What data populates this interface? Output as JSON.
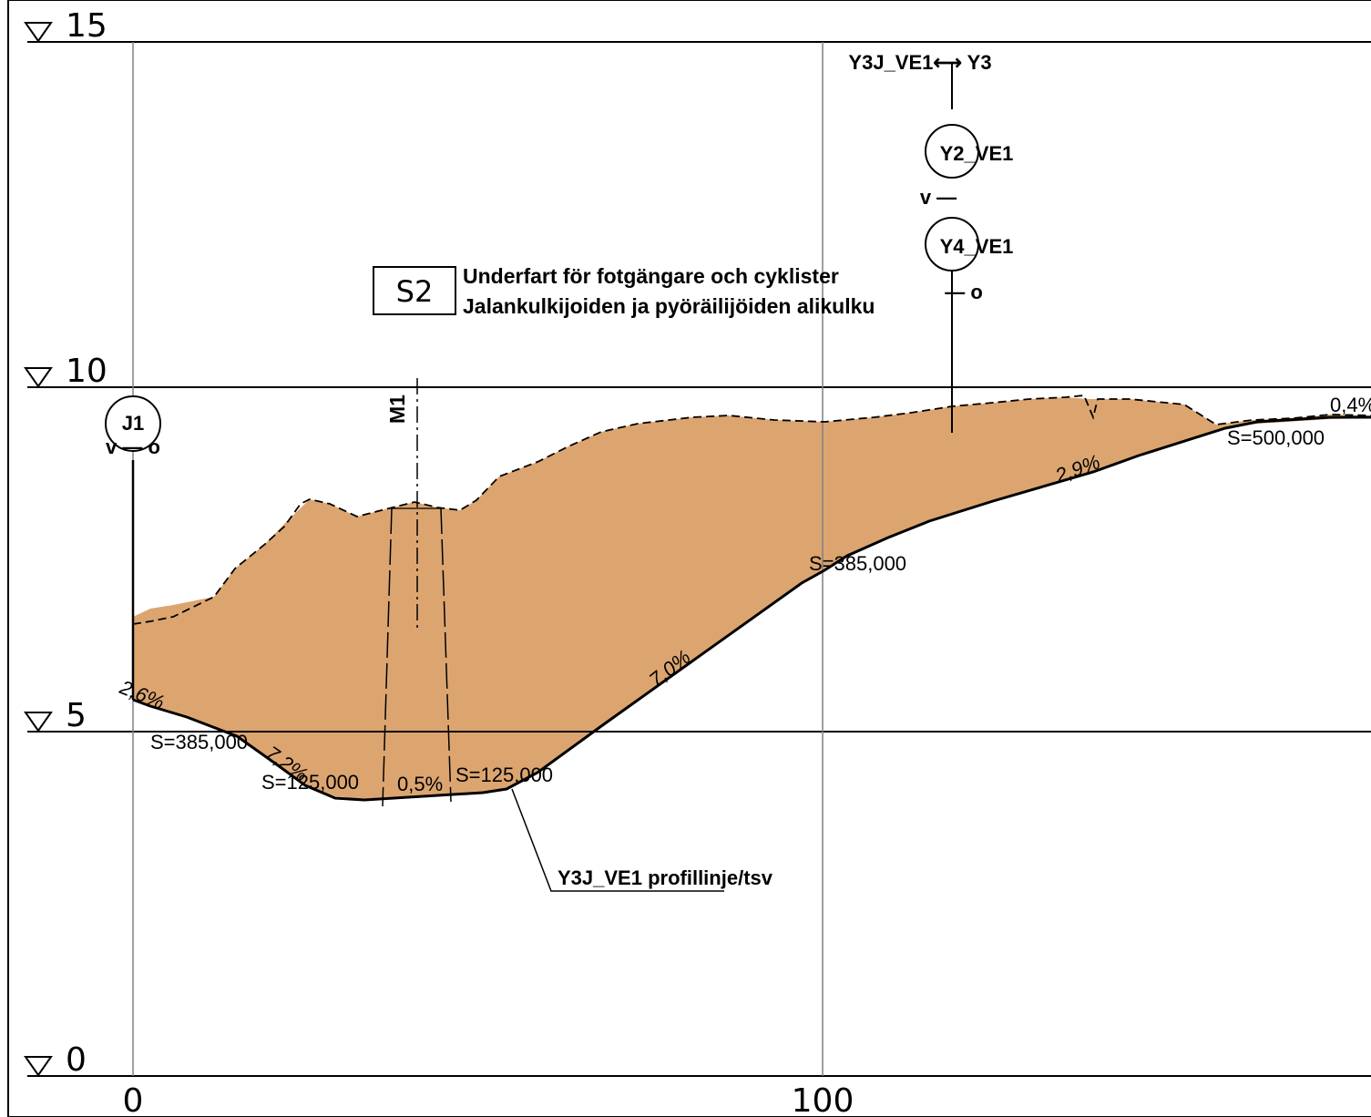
{
  "colors": {
    "fill": "#dca570",
    "line": "#000000",
    "grid": "#808080"
  },
  "elevation_labels": [
    {
      "value": 15,
      "text": "15"
    },
    {
      "value": 10,
      "text": "10"
    },
    {
      "value": 5,
      "text": "5"
    },
    {
      "value": 0,
      "text": "0"
    }
  ],
  "station_labels": [
    {
      "value": 0,
      "text": "0"
    },
    {
      "value": 100,
      "text": "100"
    }
  ],
  "markers": {
    "j1": "J1",
    "j1_sides": "v — o",
    "y2": "Y2_VE1",
    "y4": "Y4_VE1",
    "y_v": "v —",
    "y_o": "— o",
    "y3_link": "Y3J_VE1⟷ Y3",
    "m1": "M1"
  },
  "structure": {
    "code": "S2",
    "line1": "Underfart för fotgängare och cyklister",
    "line2": "Jalankulkijoiden ja pyöräilijöiden alikulku"
  },
  "profile_annotations": {
    "slope_1": "2,6%",
    "curve_1": "S=385,000",
    "slope_2": "7,2%",
    "curve_2": "S=125,000",
    "slope_3": "0,5%",
    "curve_3": "S=125,000",
    "slope_4": "7,0%",
    "curve_4": "S=385,000",
    "slope_5": "2,9%",
    "curve_5": "S=500,000",
    "slope_6": "0,4%"
  },
  "profile_label": "Y3J_VE1 profillinje/tsv"
}
